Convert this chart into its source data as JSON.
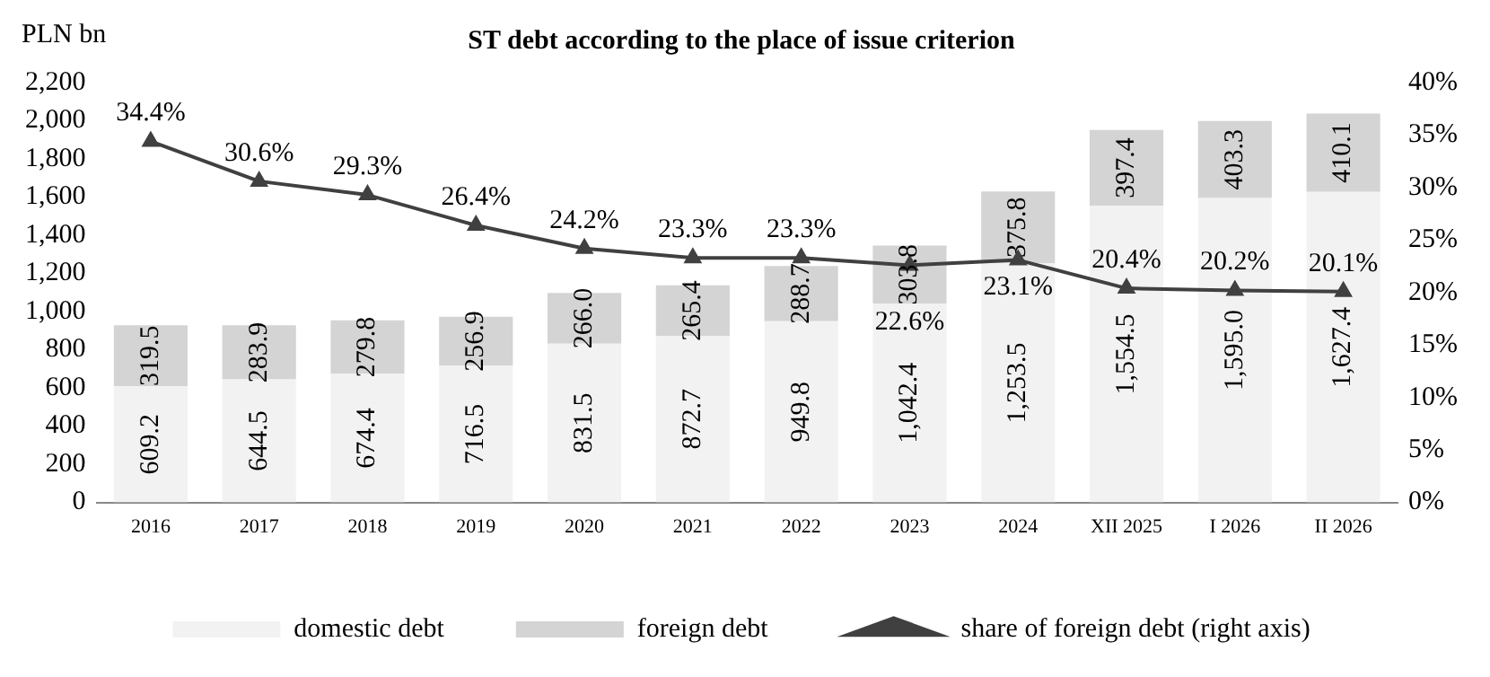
{
  "chart_data": {
    "type": "bar",
    "title": "ST debt according to the place of issue criterion",
    "ylabel": "PLN bn",
    "categories": [
      "2016",
      "2017",
      "2018",
      "2019",
      "2020",
      "2021",
      "2022",
      "2023",
      "2024",
      "XII 2025",
      "I 2026",
      "II 2026"
    ],
    "series": [
      {
        "name": "domestic debt",
        "color": "#f2f2f2",
        "values": [
          609.2,
          644.5,
          674.4,
          716.5,
          831.5,
          872.7,
          949.8,
          1042.4,
          1253.5,
          1554.5,
          1595.0,
          1627.4
        ],
        "value_labels": [
          "609.2",
          "644.5",
          "674.4",
          "716.5",
          "831.5",
          "872.7",
          "949.8",
          "1,042.4",
          "1,253.5",
          "1,554.5",
          "1,595.0",
          "1,627.4"
        ]
      },
      {
        "name": "foreign debt",
        "color": "#d4d4d4",
        "values": [
          319.5,
          283.9,
          279.8,
          256.9,
          266.0,
          265.4,
          288.7,
          303.8,
          375.8,
          397.4,
          403.3,
          410.1
        ],
        "value_labels": [
          "319.5",
          "283.9",
          "279.8",
          "256.9",
          "266.0",
          "265.4",
          "288.7",
          "303.8",
          "375.8",
          "397.4",
          "403.3",
          "410.1"
        ]
      },
      {
        "name": "share of foreign debt (right axis)",
        "color": "#404040",
        "type": "line",
        "axis": "y2",
        "values": [
          34.4,
          30.6,
          29.3,
          26.4,
          24.2,
          23.3,
          23.3,
          22.6,
          23.1,
          20.4,
          20.2,
          20.1
        ],
        "value_labels": [
          "34.4%",
          "30.6%",
          "29.3%",
          "26.4%",
          "24.2%",
          "23.3%",
          "23.3%",
          "22.6%",
          "23.1%",
          "20.4%",
          "20.2%",
          "20.1%"
        ]
      }
    ],
    "stacked": true,
    "marker": "triangle",
    "line_style": "solid",
    "legend": "bottom",
    "ylim": [
      0,
      2200
    ],
    "yticks": [
      0,
      200,
      400,
      600,
      800,
      {
        "value": 1000,
        "label": "1,000"
      },
      {
        "value": 1200,
        "label": "1,200"
      },
      {
        "value": 1400,
        "label": "1,400"
      },
      {
        "value": 1600,
        "label": "1,600"
      },
      {
        "value": 1800,
        "label": "1,800"
      },
      {
        "value": 2000,
        "label": "2,000"
      },
      {
        "value": 2200,
        "label": "2,200"
      }
    ],
    "y2lim": [
      0,
      40
    ],
    "y2ticks": [
      {
        "value": 0,
        "label": "0%"
      },
      {
        "value": 5,
        "label": "5%"
      },
      {
        "value": 10,
        "label": "10%"
      },
      {
        "value": 15,
        "label": "15%"
      },
      {
        "value": 20,
        "label": "20%"
      },
      {
        "value": 25,
        "label": "25%"
      },
      {
        "value": 30,
        "label": "30%"
      },
      {
        "value": 35,
        "label": "35%"
      },
      {
        "value": 40,
        "label": "40%"
      }
    ]
  }
}
